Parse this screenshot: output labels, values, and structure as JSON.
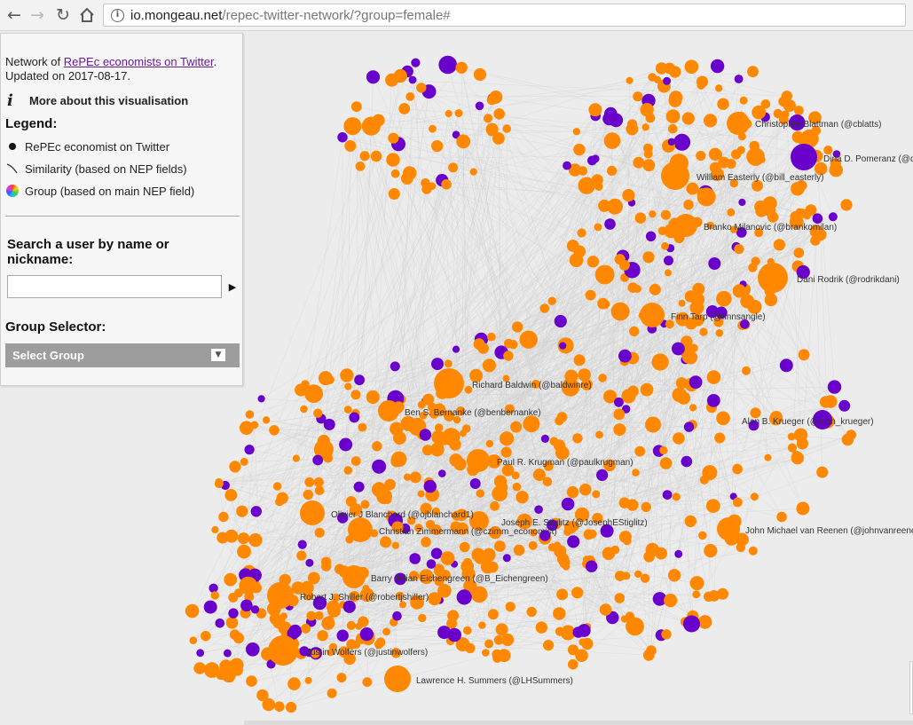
{
  "browser": {
    "url_host": "io.mongeau.net",
    "url_path": "/repec-twitter-network/?group=female#"
  },
  "panel": {
    "intro_prefix": "Network of ",
    "intro_link": "RePEc economists on Twitter",
    "intro_suffix": ".",
    "updated": "Updated on 2017-08-17.",
    "about_label": "More about this visualisation",
    "legend_title": "Legend:",
    "legend": [
      {
        "icon": "dot-icon",
        "label": "RePEc economist on Twitter"
      },
      {
        "icon": "edge-curve-icon",
        "label": "Similarity (based on NEP fields)"
      },
      {
        "icon": "color-wheel-icon",
        "label": "Group (based on main NEP field)"
      }
    ],
    "search_title": "Search a user by name or nickname:",
    "search_value": "",
    "group_title": "Group Selector:",
    "group_select": "Select Group"
  },
  "graph": {
    "colors": {
      "economist": "#ff8800",
      "female": "#6a00cc",
      "edge": "#cfcfcf",
      "label": "#333333"
    },
    "labels": [
      "Christopher Blattman (@cblatts)",
      "Dina D. Pomeranz (@dinapomeranz)",
      "William Easterly (@bill_easterly)",
      "Branko Milanovic (@brankomilan)",
      "Dani Rodrik (@rodrikdani)",
      "Finn Tarp (@finnsangle)",
      "Richard Baldwin (@baldwinre)",
      "Ben S. Bernanke (@benbernanke)",
      "Alan B. Krueger (@alan_krueger)",
      "Paul R. Krugman (@paulkrugman)",
      "Olivier J Blanchard (@ojblanchard1)",
      "Joseph E. Stiglitz (@JosephEStiglitz)",
      "Christian Zimmermann (@czimm_economist)",
      "John Michael van Reenen (@johnvanreenen)",
      "Barry Julian Eichengreen (@B_Eichengreen)",
      "Robert J. Shiller (@robertjshiller)",
      "Justin Wolfers (@justinwolfers)",
      "Lawrence H. Summers (@LHSummers)"
    ]
  }
}
